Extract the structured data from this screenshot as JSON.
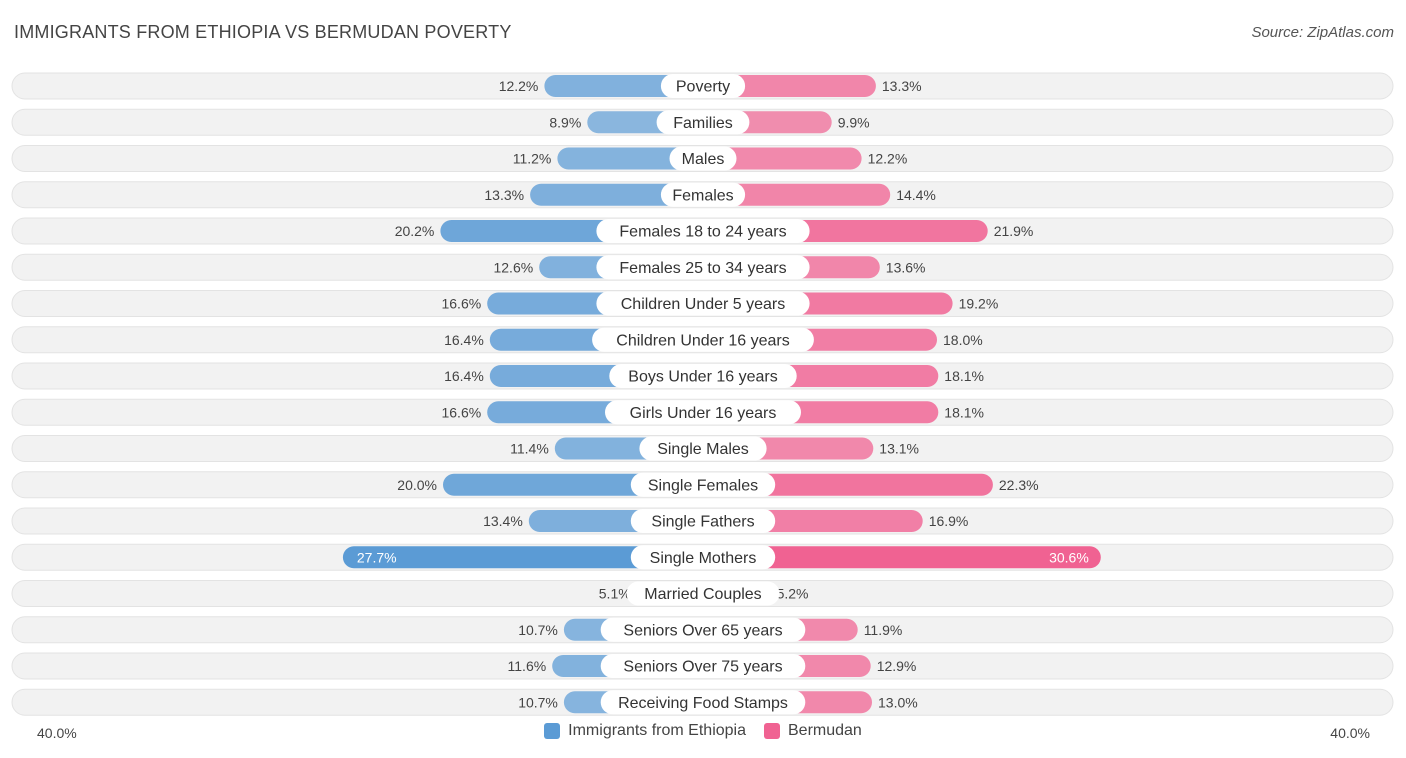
{
  "chart_data": {
    "type": "bar",
    "orientation": "horizontal-diverging",
    "title": "IMMIGRANTS FROM ETHIOPIA VS BERMUDAN POVERTY",
    "source": "Source: ZipAtlas.com",
    "axis_max": 40.0,
    "axis_left_label": "40.0%",
    "axis_right_label": "40.0%",
    "categories": [
      "Poverty",
      "Families",
      "Males",
      "Females",
      "Females 18 to 24 years",
      "Females 25 to 34 years",
      "Children Under 5 years",
      "Children Under 16 years",
      "Boys Under 16 years",
      "Girls Under 16 years",
      "Single Males",
      "Single Females",
      "Single Fathers",
      "Single Mothers",
      "Married Couples",
      "Seniors Over 65 years",
      "Seniors Over 75 years",
      "Receiving Food Stamps"
    ],
    "series": [
      {
        "name": "Immigrants from Ethiopia",
        "color": "#5b9bd5",
        "values": [
          12.2,
          8.9,
          11.2,
          13.3,
          20.2,
          12.6,
          16.6,
          16.4,
          16.4,
          16.6,
          11.4,
          20.0,
          13.4,
          27.7,
          5.1,
          10.7,
          11.6,
          10.7
        ],
        "labels": [
          "12.2%",
          "8.9%",
          "11.2%",
          "13.3%",
          "20.2%",
          "12.6%",
          "16.6%",
          "16.4%",
          "16.4%",
          "16.6%",
          "11.4%",
          "20.0%",
          "13.4%",
          "27.7%",
          "5.1%",
          "10.7%",
          "11.6%",
          "10.7%"
        ]
      },
      {
        "name": "Bermudan",
        "color": "#f06292",
        "values": [
          13.3,
          9.9,
          12.2,
          14.4,
          21.9,
          13.6,
          19.2,
          18.0,
          18.1,
          18.1,
          13.1,
          22.3,
          16.9,
          30.6,
          5.2,
          11.9,
          12.9,
          13.0
        ],
        "labels": [
          "13.3%",
          "9.9%",
          "12.2%",
          "14.4%",
          "21.9%",
          "13.6%",
          "19.2%",
          "18.0%",
          "18.1%",
          "18.1%",
          "13.1%",
          "22.3%",
          "16.9%",
          "30.6%",
          "5.2%",
          "11.9%",
          "12.9%",
          "13.0%"
        ]
      }
    ]
  }
}
